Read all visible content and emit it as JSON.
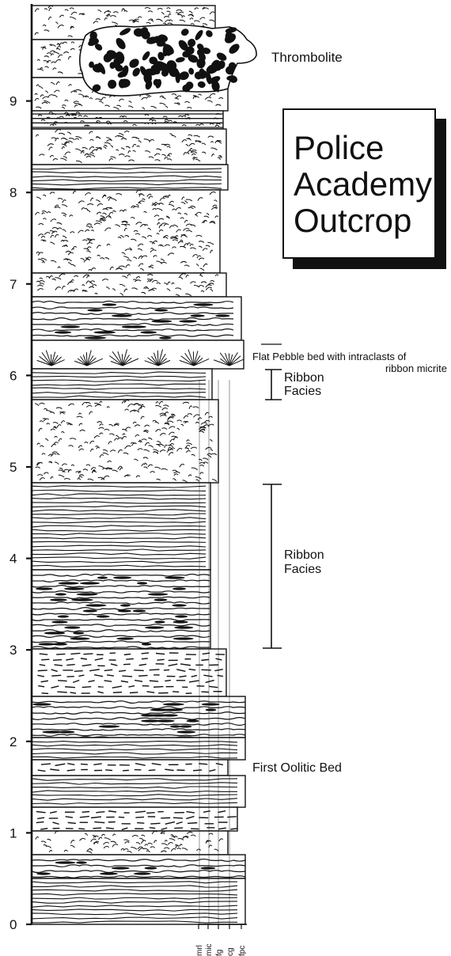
{
  "title": {
    "line1": "Police",
    "line2": "Academy",
    "line3": "Outcrop"
  },
  "scale": {
    "unit": "",
    "min": 0,
    "max": 9,
    "ticks": [
      "0",
      "1",
      "2",
      "3",
      "4",
      "5",
      "6",
      "7",
      "8",
      "9"
    ]
  },
  "grain_size_labels": [
    "mrl",
    "mic",
    "fg",
    "cg",
    "fpc"
  ],
  "annotations": {
    "thrombolite": "Thrombolite",
    "flat_pebble_line1": "Flat Pebble bed with intraclasts of",
    "flat_pebble_line2": "ribbon micrite",
    "ribbon_upper_line1": "Ribbon",
    "ribbon_upper_line2": "Facies",
    "ribbon_lower_line1": "Ribbon",
    "ribbon_lower_line2": "Facies",
    "first_oolitic": "First Oolitic Bed"
  },
  "intervals": {
    "ribbon_upper": [
      5.65,
      5.98
    ],
    "ribbon_lower": [
      3.0,
      4.75
    ],
    "flat_pebble_marker": 6.25
  },
  "colors": {
    "ink": "#111111",
    "paper": "#ffffff"
  }
}
